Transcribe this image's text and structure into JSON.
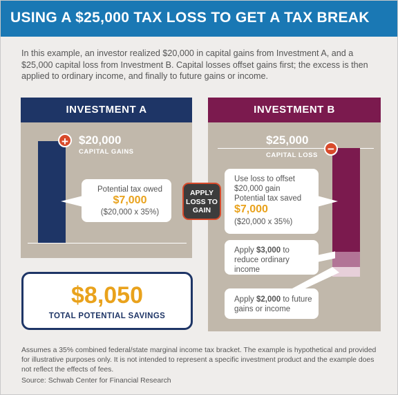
{
  "header": {
    "title": "USING A $25,000 TAX LOSS TO GET A TAX BREAK"
  },
  "intro": "In this example, an investor realized $20,000 in capital gains from Investment A, and a $25,000 capital loss from Investment B. Capital losses offset gains first; the excess is then applied to ordinary income, and finally to future gains or income.",
  "investment_a": {
    "title": "INVESTMENT A",
    "sign": "+",
    "amount": "$20,000",
    "label": "CAPITAL GAINS",
    "card": {
      "line1": "Potential tax owed",
      "value": "$7,000",
      "calc": "($20,000 x 35%)"
    }
  },
  "apply_button": {
    "line1": "APPLY",
    "line2": "LOSS TO",
    "line3": "GAIN"
  },
  "investment_b": {
    "title": "INVESTMENT B",
    "sign": "−",
    "amount": "$25,000",
    "label": "CAPITAL LOSS",
    "card1": {
      "line1": "Use loss to offset",
      "line2": "$20,000 gain",
      "line3": "Potential tax saved",
      "value": "$7,000",
      "calc": "($20,000 x 35%)"
    },
    "card2": {
      "pre": "Apply ",
      "value": "$3,000",
      "post": " to reduce ordinary income"
    },
    "card3": {
      "pre": "Apply ",
      "value": "$2,000",
      "post": " to future gains or income"
    },
    "segments": [
      {
        "label": "offset gain",
        "amount": 20000,
        "color": "#7b1a4e"
      },
      {
        "label": "ordinary income",
        "amount": 3000,
        "color": "#b27496"
      },
      {
        "label": "future gains",
        "amount": 2000,
        "color": "#e7cfd9"
      }
    ]
  },
  "savings": {
    "amount": "$8,050",
    "label": "TOTAL POTENTIAL SAVINGS"
  },
  "footnote": "Assumes a 35% combined federal/state marginal income tax bracket. The example is hypothetical and provided for illustrative purposes only. It is not intended to represent a specific investment product and the example does not reflect the effects of fees.",
  "source": "Source: Schwab Center for Financial Research",
  "colors": {
    "header_blue": "#1a78b4",
    "navy": "#1e3566",
    "plum": "#7b1a4e",
    "gold": "#e9a21c",
    "accent_red": "#d84a2b",
    "panel_taupe": "#c1b8ab"
  }
}
